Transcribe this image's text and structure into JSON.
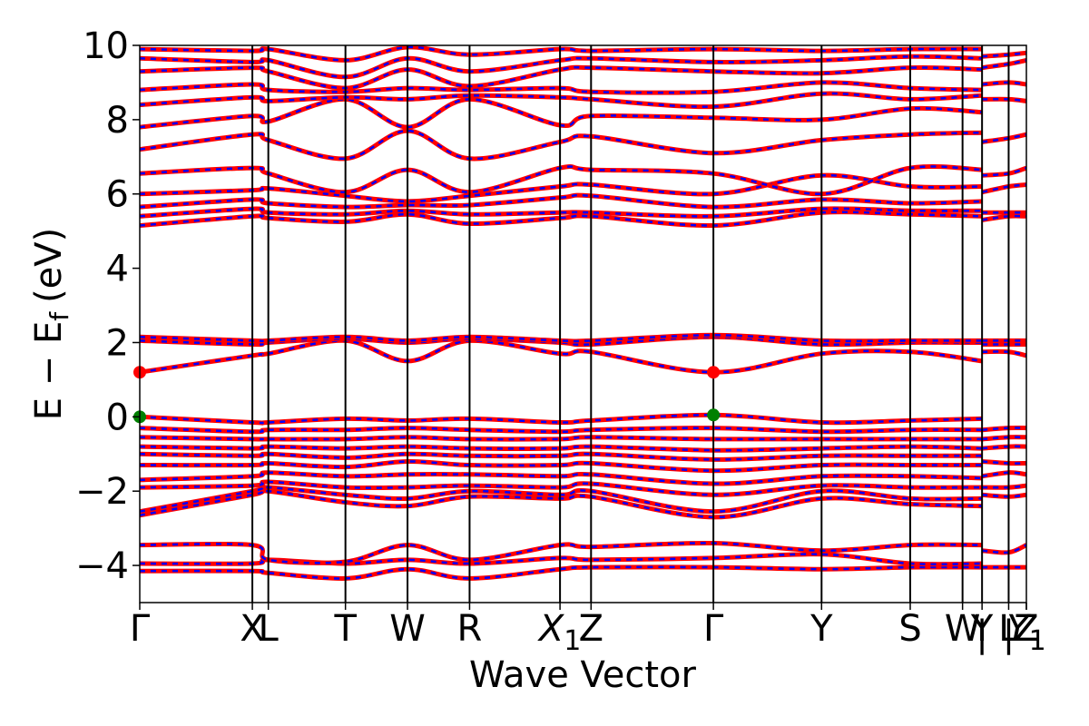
{
  "chart_data": {
    "type": "line",
    "xlabel": "Wave Vector",
    "ylabel": "E − E",
    "ylabel_subscript": "f",
    "ylabel_unit": "(eV)",
    "ylim": [
      -5,
      10
    ],
    "yticks": [
      {
        "value": -4,
        "label": "−4"
      },
      {
        "value": -2,
        "label": "−2"
      },
      {
        "value": 0,
        "label": "0"
      },
      {
        "value": 2,
        "label": "2"
      },
      {
        "value": 4,
        "label": "4"
      },
      {
        "value": 6,
        "label": "6"
      },
      {
        "value": 8,
        "label": "8"
      },
      {
        "value": 10,
        "label": "10"
      }
    ],
    "xlim": [
      0,
      1
    ],
    "high_symmetry_points": [
      {
        "label": "Γ",
        "x": 0.0
      },
      {
        "label": "X",
        "x": 0.127
      },
      {
        "label": "L",
        "x": 0.145
      },
      {
        "label": "T",
        "x": 0.232
      },
      {
        "label": "W",
        "x": 0.302
      },
      {
        "label": "R",
        "x": 0.372
      },
      {
        "label": "X",
        "sub": "1",
        "x": 0.474
      },
      {
        "label": "Z",
        "x": 0.509
      },
      {
        "label": "Γ",
        "x": 0.647
      },
      {
        "label": "Y",
        "x": 0.769
      },
      {
        "label": "S",
        "x": 0.869
      },
      {
        "label": "W",
        "x": 0.928
      },
      {
        "label": "Y",
        "x": 0.95
      },
      {
        "label": "L",
        "x": 0.98
      },
      {
        "label": "Z",
        "x": 1.0
      },
      {
        "label": "Y",
        "sub": "1",
        "x": 1.0
      }
    ],
    "separator_marks": [
      {
        "label": "|",
        "x": 0.95
      },
      {
        "label": "|",
        "x": 0.98
      }
    ],
    "breaks": [
      0.95
    ],
    "series_styles": {
      "spin_up_color": "#ff0000",
      "spin_down_color": "#0000ff"
    },
    "bands": [
      {
        "x": [
          0,
          0.127,
          0.145,
          0.232,
          0.302,
          0.372,
          0.474,
          0.509,
          0.647,
          0.769,
          0.869,
          0.95
        ],
        "y": [
          -4.15,
          -4.15,
          -4.2,
          -4.35,
          -4.1,
          -4.35,
          -4.1,
          -4.05,
          -4.05,
          -4.1,
          -4.05,
          -4.05
        ]
      },
      {
        "x": [
          0,
          0.127,
          0.145,
          0.232,
          0.302,
          0.372,
          0.474,
          0.509,
          0.647,
          0.769,
          0.869,
          0.95
        ],
        "y": [
          -3.95,
          -3.95,
          -3.85,
          -3.95,
          -3.85,
          -3.95,
          -3.8,
          -3.85,
          -3.8,
          -3.7,
          -3.95,
          -3.95
        ]
      },
      {
        "x": [
          0,
          0.127,
          0.145,
          0.232,
          0.302,
          0.372,
          0.474,
          0.509,
          0.647,
          0.769,
          0.869,
          0.95
        ],
        "y": [
          -3.45,
          -3.45,
          -3.85,
          -3.9,
          -3.45,
          -3.85,
          -3.45,
          -3.5,
          -3.4,
          -3.6,
          -3.45,
          -3.45
        ]
      },
      {
        "x": [
          0,
          0.127,
          0.145,
          0.232,
          0.302,
          0.372,
          0.474,
          0.509,
          0.647,
          0.769,
          0.869,
          0.95
        ],
        "y": [
          -2.65,
          -2.1,
          -2.0,
          -2.3,
          -2.4,
          -2.15,
          -2.2,
          -2.15,
          -2.7,
          -2.2,
          -2.35,
          -2.4
        ]
      },
      {
        "x": [
          0,
          0.127,
          0.145,
          0.232,
          0.302,
          0.372,
          0.474,
          0.509,
          0.647,
          0.769,
          0.869,
          0.95
        ],
        "y": [
          -2.55,
          -2.0,
          -1.9,
          -2.1,
          -2.2,
          -2.0,
          -2.1,
          -2.0,
          -2.55,
          -2.0,
          -2.2,
          -2.2
        ]
      },
      {
        "x": [
          0,
          0.127,
          0.145,
          0.232,
          0.302,
          0.372,
          0.474,
          0.509,
          0.647,
          0.769,
          0.869,
          0.95
        ],
        "y": [
          -1.9,
          -1.85,
          -1.75,
          -1.9,
          -1.9,
          -1.85,
          -1.9,
          -1.8,
          -2.1,
          -1.85,
          -1.9,
          -1.9
        ]
      },
      {
        "x": [
          0,
          0.127,
          0.145,
          0.232,
          0.302,
          0.372,
          0.474,
          0.509,
          0.647,
          0.769,
          0.869,
          0.95
        ],
        "y": [
          -1.7,
          -1.6,
          -1.5,
          -1.6,
          -1.55,
          -1.55,
          -1.6,
          -1.55,
          -1.8,
          -1.6,
          -1.6,
          -1.65
        ]
      },
      {
        "x": [
          0,
          0.127,
          0.145,
          0.232,
          0.302,
          0.372,
          0.474,
          0.509,
          0.647,
          0.769,
          0.869,
          0.95
        ],
        "y": [
          -1.3,
          -1.3,
          -1.25,
          -1.35,
          -1.2,
          -1.3,
          -1.3,
          -1.25,
          -1.45,
          -1.3,
          -1.3,
          -1.3
        ]
      },
      {
        "x": [
          0,
          0.127,
          0.145,
          0.232,
          0.302,
          0.372,
          0.474,
          0.509,
          0.647,
          0.769,
          0.869,
          0.95
        ],
        "y": [
          -1.0,
          -1.05,
          -1.0,
          -1.1,
          -1.0,
          -1.05,
          -1.05,
          -1.0,
          -1.15,
          -1.05,
          -1.05,
          -1.05
        ]
      },
      {
        "x": [
          0,
          0.127,
          0.145,
          0.232,
          0.302,
          0.372,
          0.474,
          0.509,
          0.647,
          0.769,
          0.869,
          0.95
        ],
        "y": [
          -0.8,
          -0.85,
          -0.8,
          -0.85,
          -0.8,
          -0.85,
          -0.85,
          -0.8,
          -0.9,
          -0.85,
          -0.8,
          -0.85
        ]
      },
      {
        "x": [
          0,
          0.127,
          0.145,
          0.232,
          0.302,
          0.372,
          0.474,
          0.509,
          0.647,
          0.769,
          0.869,
          0.95
        ],
        "y": [
          -0.55,
          -0.6,
          -0.6,
          -0.6,
          -0.55,
          -0.6,
          -0.6,
          -0.55,
          -0.6,
          -0.6,
          -0.6,
          -0.6
        ]
      },
      {
        "x": [
          0,
          0.127,
          0.145,
          0.232,
          0.302,
          0.372,
          0.474,
          0.509,
          0.647,
          0.769,
          0.869,
          0.95
        ],
        "y": [
          -0.3,
          -0.4,
          -0.35,
          -0.35,
          -0.3,
          -0.35,
          -0.4,
          -0.35,
          -0.3,
          -0.4,
          -0.35,
          -0.35
        ]
      },
      {
        "x": [
          0,
          0.127,
          0.145,
          0.232,
          0.302,
          0.372,
          0.474,
          0.509,
          0.647,
          0.769,
          0.869,
          0.95
        ],
        "y": [
          0.0,
          -0.15,
          -0.15,
          -0.05,
          -0.1,
          -0.05,
          -0.15,
          -0.1,
          0.05,
          -0.15,
          -0.1,
          -0.05
        ]
      },
      {
        "x": [
          0,
          0.127,
          0.145,
          0.232,
          0.302,
          0.372,
          0.474,
          0.509,
          0.647,
          0.769,
          0.869,
          0.95
        ],
        "y": [
          1.2,
          1.65,
          1.7,
          2.05,
          1.5,
          2.05,
          1.7,
          1.75,
          1.2,
          1.7,
          1.75,
          1.5
        ]
      },
      {
        "x": [
          0,
          0.127,
          0.145,
          0.232,
          0.302,
          0.372,
          0.474,
          0.509,
          0.647,
          0.769,
          0.869,
          0.95
        ],
        "y": [
          2.05,
          1.95,
          2.0,
          2.1,
          2.0,
          2.1,
          2.0,
          1.95,
          2.15,
          1.95,
          2.0,
          2.0
        ]
      },
      {
        "x": [
          0,
          0.127,
          0.145,
          0.232,
          0.302,
          0.372,
          0.474,
          0.509,
          0.647,
          0.769,
          0.869,
          0.95
        ],
        "y": [
          2.15,
          2.05,
          2.05,
          2.15,
          2.05,
          2.15,
          2.05,
          2.05,
          2.2,
          2.05,
          2.05,
          2.05
        ]
      },
      {
        "x": [
          0,
          0.127,
          0.145,
          0.232,
          0.302,
          0.372,
          0.474,
          0.509,
          0.647,
          0.769,
          0.869,
          0.95
        ],
        "y": [
          5.15,
          5.4,
          5.35,
          5.25,
          5.45,
          5.2,
          5.35,
          5.4,
          5.15,
          5.5,
          5.45,
          5.4
        ]
      },
      {
        "x": [
          0,
          0.127,
          0.145,
          0.232,
          0.302,
          0.372,
          0.474,
          0.509,
          0.647,
          0.769,
          0.869,
          0.95
        ],
        "y": [
          5.4,
          5.6,
          5.5,
          5.45,
          5.55,
          5.45,
          5.5,
          5.5,
          5.4,
          5.6,
          5.55,
          5.55
        ]
      },
      {
        "x": [
          0,
          0.127,
          0.145,
          0.232,
          0.302,
          0.372,
          0.474,
          0.509,
          0.647,
          0.769,
          0.869,
          0.95
        ],
        "y": [
          5.65,
          5.85,
          5.75,
          5.65,
          5.7,
          5.7,
          5.9,
          5.95,
          5.65,
          5.85,
          5.75,
          5.8
        ]
      },
      {
        "x": [
          0,
          0.127,
          0.145,
          0.232,
          0.302,
          0.372,
          0.474,
          0.509,
          0.647,
          0.769,
          0.869,
          0.95
        ],
        "y": [
          6.0,
          6.1,
          6.15,
          5.95,
          5.8,
          5.95,
          6.2,
          6.25,
          6.0,
          6.5,
          6.2,
          6.2
        ]
      },
      {
        "x": [
          0,
          0.127,
          0.145,
          0.232,
          0.302,
          0.372,
          0.474,
          0.509,
          0.647,
          0.769,
          0.869,
          0.95
        ],
        "y": [
          6.55,
          6.7,
          6.55,
          6.05,
          6.65,
          6.05,
          6.7,
          6.65,
          6.55,
          6.0,
          6.7,
          6.65
        ]
      },
      {
        "x": [
          0,
          0.127,
          0.145,
          0.232,
          0.302,
          0.372,
          0.474,
          0.509,
          0.647,
          0.769,
          0.869,
          0.95
        ],
        "y": [
          7.2,
          7.6,
          7.45,
          6.95,
          7.7,
          6.95,
          7.4,
          7.55,
          7.1,
          7.45,
          7.6,
          7.65
        ]
      },
      {
        "x": [
          0,
          0.127,
          0.145,
          0.232,
          0.302,
          0.372,
          0.474,
          0.509,
          0.647,
          0.769,
          0.869,
          0.95
        ],
        "y": [
          7.8,
          8.1,
          7.95,
          8.55,
          7.8,
          8.55,
          7.85,
          8.1,
          8.05,
          8.0,
          8.3,
          8.2
        ]
      },
      {
        "x": [
          0,
          0.127,
          0.145,
          0.232,
          0.302,
          0.372,
          0.474,
          0.509,
          0.647,
          0.769,
          0.869,
          0.95
        ],
        "y": [
          8.4,
          8.6,
          8.5,
          8.6,
          8.55,
          8.65,
          8.6,
          8.55,
          8.35,
          8.7,
          8.55,
          8.65
        ]
      },
      {
        "x": [
          0,
          0.127,
          0.145,
          0.232,
          0.302,
          0.372,
          0.474,
          0.509,
          0.647,
          0.769,
          0.869,
          0.95
        ],
        "y": [
          8.8,
          8.95,
          8.8,
          8.75,
          8.85,
          8.8,
          8.85,
          8.75,
          8.75,
          9.0,
          8.85,
          8.8
        ]
      },
      {
        "x": [
          0,
          0.127,
          0.145,
          0.232,
          0.302,
          0.372,
          0.474,
          0.509,
          0.647,
          0.769,
          0.869,
          0.95
        ],
        "y": [
          9.3,
          9.4,
          9.3,
          8.85,
          9.35,
          8.9,
          9.35,
          9.4,
          9.3,
          9.25,
          9.4,
          9.35
        ]
      },
      {
        "x": [
          0,
          0.127,
          0.145,
          0.232,
          0.302,
          0.372,
          0.474,
          0.509,
          0.647,
          0.769,
          0.869,
          0.95
        ],
        "y": [
          9.65,
          9.55,
          9.6,
          9.15,
          9.65,
          9.3,
          9.6,
          9.65,
          9.55,
          9.6,
          9.7,
          9.65
        ]
      },
      {
        "x": [
          0,
          0.127,
          0.145,
          0.232,
          0.302,
          0.372,
          0.474,
          0.509,
          0.647,
          0.769,
          0.869,
          0.95
        ],
        "y": [
          9.9,
          9.85,
          9.9,
          9.6,
          9.95,
          9.75,
          9.9,
          9.85,
          9.9,
          9.85,
          9.9,
          9.9
        ]
      },
      {
        "x": [
          0.95,
          0.98,
          1.0
        ],
        "y": [
          -4.05,
          -4.05,
          -4.05
        ]
      },
      {
        "x": [
          0.95,
          0.98,
          1.0
        ],
        "y": [
          -3.6,
          -3.65,
          -3.45
        ]
      },
      {
        "x": [
          0.95,
          0.98,
          1.0
        ],
        "y": [
          -2.1,
          -2.15,
          -2.1
        ]
      },
      {
        "x": [
          0.95,
          0.98,
          1.0
        ],
        "y": [
          -1.9,
          -1.9,
          -1.85
        ]
      },
      {
        "x": [
          0.95,
          0.98,
          1.0
        ],
        "y": [
          -1.6,
          -1.5,
          -1.55
        ]
      },
      {
        "x": [
          0.95,
          0.98,
          1.0
        ],
        "y": [
          -1.2,
          -1.25,
          -1.25
        ]
      },
      {
        "x": [
          0.95,
          0.98,
          1.0
        ],
        "y": [
          -0.85,
          -0.8,
          -0.8
        ]
      },
      {
        "x": [
          0.95,
          0.98,
          1.0
        ],
        "y": [
          -0.6,
          -0.55,
          -0.55
        ]
      },
      {
        "x": [
          0.95,
          0.98,
          1.0
        ],
        "y": [
          -0.35,
          -0.3,
          -0.3
        ]
      },
      {
        "x": [
          0.95,
          0.98,
          1.0
        ],
        "y": [
          1.75,
          1.75,
          1.65
        ]
      },
      {
        "x": [
          0.95,
          0.98,
          1.0
        ],
        "y": [
          1.95,
          1.95,
          1.95
        ]
      },
      {
        "x": [
          0.95,
          0.98,
          1.0
        ],
        "y": [
          2.05,
          2.05,
          2.05
        ]
      },
      {
        "x": [
          0.95,
          0.98,
          1.0
        ],
        "y": [
          5.3,
          5.4,
          5.4
        ]
      },
      {
        "x": [
          0.95,
          0.98,
          1.0
        ],
        "y": [
          5.5,
          5.5,
          5.5
        ]
      },
      {
        "x": [
          0.95,
          0.98,
          1.0
        ],
        "y": [
          6.05,
          6.2,
          6.25
        ]
      },
      {
        "x": [
          0.95,
          0.98,
          1.0
        ],
        "y": [
          6.5,
          6.55,
          6.7
        ]
      },
      {
        "x": [
          0.95,
          0.98,
          1.0
        ],
        "y": [
          7.4,
          7.5,
          7.6
        ]
      },
      {
        "x": [
          0.95,
          0.98,
          1.0
        ],
        "y": [
          8.55,
          8.55,
          8.5
        ]
      },
      {
        "x": [
          0.95,
          0.98,
          1.0
        ],
        "y": [
          8.95,
          9.0,
          8.95
        ]
      },
      {
        "x": [
          0.95,
          0.98,
          1.0
        ],
        "y": [
          9.4,
          9.5,
          9.6
        ]
      },
      {
        "x": [
          0.95,
          0.98,
          1.0
        ],
        "y": [
          9.7,
          9.75,
          9.8
        ]
      }
    ],
    "markers": [
      {
        "x": 0.0,
        "y": 1.2,
        "color": "#ff0000",
        "label": "CBM"
      },
      {
        "x": 0.647,
        "y": 1.2,
        "color": "#ff0000",
        "label": "CBM"
      },
      {
        "x": 0.0,
        "y": 0.0,
        "color": "#008000",
        "label": "VBM"
      },
      {
        "x": 0.647,
        "y": 0.05,
        "color": "#008000",
        "label": "VBM"
      }
    ]
  }
}
